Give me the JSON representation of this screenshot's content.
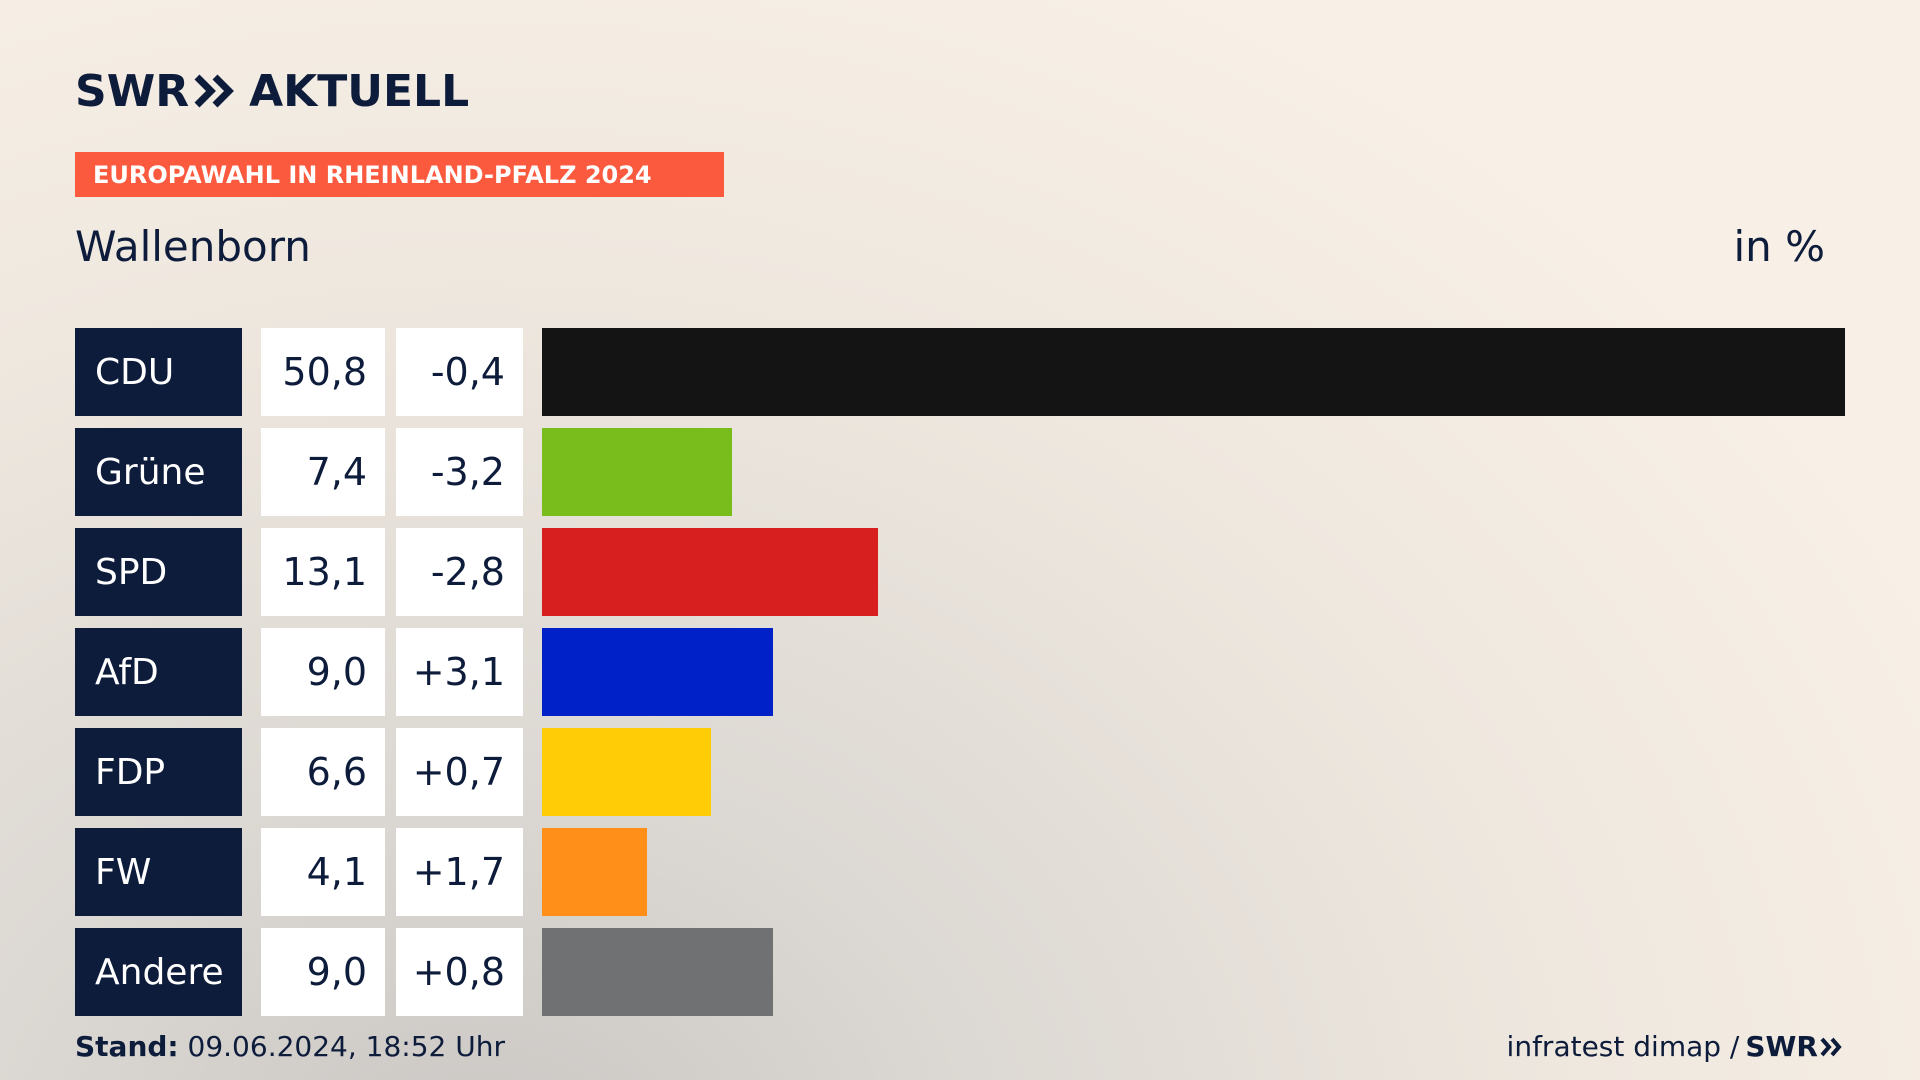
{
  "logo": {
    "text_left": "SWR",
    "text_right": "AKTUELL"
  },
  "badge": "EUROPAWAHL IN RHEINLAND-PFALZ 2024",
  "region": "Wallenborn",
  "unit_label": "in %",
  "footer": {
    "stand_label": "Stand:",
    "timestamp": "09.06.2024, 18:52 Uhr",
    "source": "infratest dimap /",
    "source_logo": "SWR"
  },
  "colors": {
    "navy": "#0e1c3b",
    "badge": "#fb5a3f"
  },
  "chart_data": {
    "type": "bar",
    "categories": [
      "CDU",
      "Grüne",
      "SPD",
      "AfD",
      "FDP",
      "FW",
      "Andere"
    ],
    "values": [
      50.8,
      7.4,
      13.1,
      9.0,
      6.6,
      4.1,
      9.0
    ],
    "value_labels": [
      "50,8",
      "7,4",
      "13,1",
      "9,0",
      "6,6",
      "4,1",
      "9,0"
    ],
    "changes": [
      "-0,4",
      "-3,2",
      "-2,8",
      "+3,1",
      "+0,7",
      "+1,7",
      "+0,8"
    ],
    "bar_colors": [
      "#141414",
      "#79bd1c",
      "#d71f1f",
      "#0021c8",
      "#ffcc05",
      "#ff8f19",
      "#707173"
    ],
    "xlim": [
      0,
      50.8
    ]
  }
}
